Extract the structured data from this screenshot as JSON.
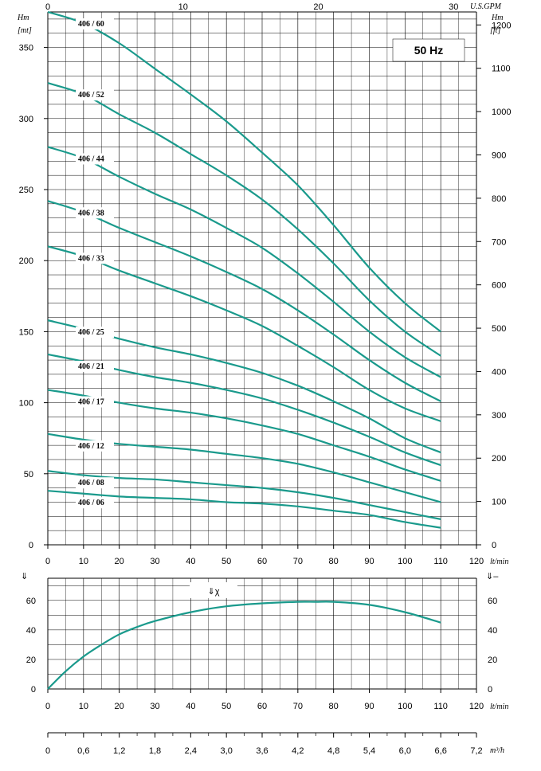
{
  "badge": "50 Hz",
  "chart_data": [
    {
      "type": "line",
      "title": "",
      "x_axis_bottom": {
        "label": "lt/min",
        "min": 0,
        "max": 120,
        "ticks": [
          "0",
          "10",
          "20",
          "30",
          "40",
          "50",
          "60",
          "70",
          "80",
          "90",
          "100",
          "110",
          "120"
        ]
      },
      "x_axis_top": {
        "label": "U.S.GPM",
        "min": 0,
        "max": 30,
        "ticks": [
          "0",
          "10",
          "20",
          "30"
        ]
      },
      "y_axis_left": {
        "label_line1": "Hm",
        "label_line2": "[mt]",
        "min": 0,
        "max": 375,
        "ticks": [
          "0",
          "50",
          "100",
          "150",
          "200",
          "250",
          "300",
          "350"
        ]
      },
      "y_axis_right": {
        "label_line1": "Hm",
        "label_line2": "[ft]",
        "min": 0,
        "max": 1230,
        "ticks": [
          "0",
          "100",
          "200",
          "300",
          "400",
          "500",
          "600",
          "700",
          "800",
          "900",
          "1000",
          "1100",
          "1200"
        ]
      },
      "color": "#1a9a8c",
      "grid": true,
      "series": [
        {
          "name": "406 / 60",
          "x": [
            0,
            10,
            20,
            30,
            40,
            50,
            60,
            70,
            80,
            90,
            100,
            110
          ],
          "values": [
            375,
            367,
            353,
            335,
            317,
            298,
            276,
            253,
            225,
            195,
            170,
            150
          ]
        },
        {
          "name": "406 / 52",
          "x": [
            0,
            10,
            20,
            30,
            40,
            50,
            60,
            70,
            80,
            90,
            100,
            110
          ],
          "values": [
            325,
            317,
            303,
            290,
            275,
            260,
            243,
            222,
            198,
            172,
            150,
            133
          ]
        },
        {
          "name": "406 / 44",
          "x": [
            0,
            10,
            20,
            30,
            40,
            50,
            60,
            70,
            80,
            90,
            100,
            110
          ],
          "values": [
            280,
            272,
            259,
            247,
            236,
            223,
            209,
            191,
            171,
            150,
            132,
            118
          ]
        },
        {
          "name": "406 / 38",
          "x": [
            0,
            10,
            20,
            30,
            40,
            50,
            60,
            70,
            80,
            90,
            100,
            110
          ],
          "values": [
            242,
            234,
            223,
            213,
            203,
            192,
            180,
            165,
            148,
            130,
            114,
            101
          ]
        },
        {
          "name": "406 / 33",
          "x": [
            0,
            10,
            20,
            30,
            40,
            50,
            60,
            70,
            80,
            90,
            100,
            110
          ],
          "values": [
            210,
            203,
            193,
            184,
            175,
            165,
            154,
            140,
            125,
            109,
            96,
            87
          ]
        },
        {
          "name": "406 / 25",
          "x": [
            0,
            10,
            20,
            30,
            40,
            50,
            60,
            70,
            80,
            90,
            100,
            110
          ],
          "values": [
            158,
            152,
            145,
            139,
            134,
            128,
            121,
            112,
            101,
            89,
            75,
            65
          ]
        },
        {
          "name": "406 / 21",
          "x": [
            0,
            10,
            20,
            30,
            40,
            50,
            60,
            70,
            80,
            90,
            100,
            110
          ],
          "values": [
            134,
            129,
            123,
            118,
            114,
            109,
            103,
            95,
            86,
            76,
            65,
            56
          ]
        },
        {
          "name": "406 / 17",
          "x": [
            0,
            10,
            20,
            30,
            40,
            50,
            60,
            70,
            80,
            90,
            100,
            110
          ],
          "values": [
            109,
            105,
            100,
            96,
            93,
            89,
            84,
            78,
            70,
            62,
            53,
            45
          ]
        },
        {
          "name": "406 / 12",
          "x": [
            0,
            10,
            20,
            30,
            40,
            50,
            60,
            70,
            80,
            90,
            100,
            110
          ],
          "values": [
            78,
            74,
            71,
            69,
            67,
            64,
            61,
            57,
            51,
            44,
            37,
            30
          ]
        },
        {
          "name": "406 / 08",
          "x": [
            0,
            10,
            20,
            30,
            40,
            50,
            60,
            70,
            80,
            90,
            100,
            110
          ],
          "values": [
            52,
            49,
            47,
            46,
            44,
            42,
            40,
            37,
            33,
            28,
            23,
            18
          ]
        },
        {
          "name": "406 / 06",
          "x": [
            0,
            10,
            20,
            30,
            40,
            50,
            60,
            70,
            80,
            90,
            100,
            110
          ],
          "values": [
            38,
            36,
            34,
            33,
            32,
            30,
            29,
            27,
            24,
            21,
            16,
            12
          ]
        }
      ]
    },
    {
      "type": "line",
      "title": "",
      "label": "⇓χ",
      "left_symbol": "⇓",
      "right_symbol": "⇓–",
      "x_axis": {
        "label": "lt/min",
        "min": 0,
        "max": 120,
        "ticks": [
          "0",
          "10",
          "20",
          "30",
          "40",
          "50",
          "60",
          "70",
          "80",
          "90",
          "100",
          "110",
          "120"
        ]
      },
      "y_axis": {
        "min": 0,
        "max": 75,
        "ticks": [
          "0",
          "20",
          "40",
          "60"
        ]
      },
      "color": "#1a9a8c",
      "grid": true,
      "series": [
        {
          "name": "",
          "x": [
            0,
            5,
            10,
            15,
            20,
            25,
            30,
            40,
            50,
            60,
            70,
            75,
            80,
            90,
            100,
            110
          ],
          "values": [
            0,
            12,
            22,
            30,
            37,
            42,
            46,
            52,
            56,
            58,
            59,
            59,
            59,
            57,
            52,
            45
          ]
        }
      ]
    },
    {
      "type": "axis",
      "label": "m³/h",
      "ticks": [
        "0",
        "0,6",
        "1,2",
        "1,8",
        "2,4",
        "3,0",
        "3,6",
        "4,2",
        "4,8",
        "5,4",
        "6,0",
        "6,6",
        "7,2"
      ]
    }
  ]
}
